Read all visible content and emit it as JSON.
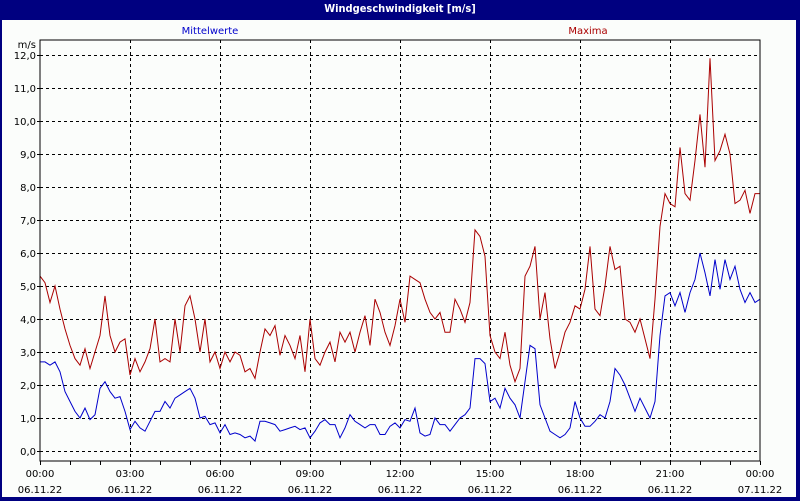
{
  "window": {
    "title": "Windgeschwindigkeit [m/s]"
  },
  "legend": {
    "mean_label": "Mittelwerte",
    "max_label": "Maxima",
    "mean_color": "#0000CC",
    "max_color": "#AA0000"
  },
  "chart_data": {
    "type": "line",
    "title": "Windgeschwindigkeit [m/s]",
    "ylabel": "m/s",
    "xlabel": "",
    "ylim": [
      0,
      12
    ],
    "yticks": [
      "0,0",
      "1,0",
      "2,0",
      "3,0",
      "4,0",
      "5,0",
      "6,0",
      "7,0",
      "8,0",
      "9,0",
      "10,0",
      "11,0",
      "12,0"
    ],
    "xticks": [
      {
        "time": "00:00",
        "date": "06.11.22"
      },
      {
        "time": "03:00",
        "date": "06.11.22"
      },
      {
        "time": "06:00",
        "date": "06.11.22"
      },
      {
        "time": "09:00",
        "date": "06.11.22"
      },
      {
        "time": "12:00",
        "date": "06.11.22"
      },
      {
        "time": "15:00",
        "date": "06.11.22"
      },
      {
        "time": "18:00",
        "date": "06.11.22"
      },
      {
        "time": "21:00",
        "date": "06.11.22"
      },
      {
        "time": "00:00",
        "date": "07.11.22"
      }
    ],
    "grid": true,
    "legend_position": "top",
    "x_interval_minutes": 10,
    "series": [
      {
        "name": "Mittelwerte",
        "color": "#0000CC",
        "values": [
          2.7,
          2.7,
          2.6,
          2.7,
          2.4,
          1.8,
          1.5,
          1.2,
          1.0,
          1.3,
          0.95,
          1.1,
          1.9,
          2.1,
          1.8,
          1.6,
          1.65,
          1.2,
          0.65,
          0.9,
          0.7,
          0.6,
          0.9,
          1.2,
          1.2,
          1.5,
          1.3,
          1.6,
          1.7,
          1.8,
          1.9,
          1.6,
          1.0,
          1.05,
          0.8,
          0.85,
          0.55,
          0.8,
          0.5,
          0.55,
          0.5,
          0.4,
          0.45,
          0.3,
          0.9,
          0.9,
          0.85,
          0.8,
          0.6,
          0.65,
          0.7,
          0.75,
          0.65,
          0.7,
          0.4,
          0.6,
          0.85,
          0.95,
          0.8,
          0.8,
          0.4,
          0.7,
          1.1,
          0.9,
          0.8,
          0.7,
          0.8,
          0.8,
          0.5,
          0.5,
          0.75,
          0.85,
          0.7,
          0.95,
          0.9,
          1.3,
          0.55,
          0.45,
          0.5,
          1.0,
          0.8,
          0.8,
          0.6,
          0.8,
          1.0,
          1.1,
          1.3,
          2.8,
          2.8,
          2.65,
          1.5,
          1.6,
          1.3,
          1.9,
          1.6,
          1.4,
          1.0,
          2.1,
          3.2,
          3.1,
          1.4,
          1.0,
          0.6,
          0.5,
          0.4,
          0.5,
          0.7,
          1.5,
          1.0,
          0.75,
          0.75,
          0.9,
          1.1,
          1.0,
          1.5,
          2.5,
          2.3,
          2.0,
          1.6,
          1.2,
          1.6,
          1.3,
          1.0,
          1.5,
          3.5,
          4.7,
          4.8,
          4.4,
          4.8,
          4.2,
          4.8,
          5.2,
          6.0,
          5.4,
          4.7,
          5.8,
          4.9,
          5.8,
          5.2,
          5.6,
          4.9,
          4.5,
          4.8,
          4.5,
          4.6
        ]
      },
      {
        "name": "Maxima",
        "color": "#AA0000",
        "values": [
          5.3,
          5.1,
          4.5,
          5.0,
          4.3,
          3.7,
          3.2,
          2.8,
          2.6,
          3.1,
          2.5,
          3.0,
          3.5,
          4.7,
          3.5,
          3.0,
          3.3,
          3.4,
          2.3,
          2.8,
          2.4,
          2.7,
          3.1,
          4.0,
          2.7,
          2.8,
          2.7,
          4.0,
          3.0,
          4.4,
          4.7,
          4.0,
          3.0,
          4.0,
          2.7,
          3.0,
          2.5,
          3.0,
          2.7,
          3.0,
          2.9,
          2.4,
          2.5,
          2.2,
          3.0,
          3.7,
          3.5,
          3.8,
          2.9,
          3.5,
          3.2,
          2.8,
          3.5,
          2.4,
          4.0,
          2.8,
          2.6,
          3.0,
          3.3,
          2.7,
          3.6,
          3.3,
          3.6,
          3.0,
          3.6,
          4.1,
          3.2,
          4.6,
          4.2,
          3.6,
          3.2,
          3.8,
          4.6,
          3.9,
          5.3,
          5.2,
          5.1,
          4.6,
          4.2,
          4.0,
          4.2,
          3.6,
          3.6,
          4.6,
          4.3,
          3.9,
          4.5,
          6.7,
          6.5,
          5.9,
          3.5,
          3.0,
          2.8,
          3.6,
          2.6,
          2.1,
          2.5,
          5.3,
          5.6,
          6.2,
          4.0,
          4.8,
          3.4,
          2.5,
          3.0,
          3.6,
          3.9,
          4.4,
          4.3,
          4.9,
          6.2,
          4.3,
          4.1,
          5.0,
          6.2,
          5.5,
          5.6,
          4.0,
          3.9,
          3.6,
          4.0,
          3.4,
          2.8,
          4.6,
          6.8,
          7.8,
          7.5,
          7.4,
          9.2,
          7.8,
          7.6,
          8.8,
          10.2,
          8.6,
          11.9,
          8.8,
          9.1,
          9.6,
          9.0,
          7.5,
          7.6,
          7.9,
          7.2,
          7.8,
          7.8
        ]
      }
    ]
  }
}
